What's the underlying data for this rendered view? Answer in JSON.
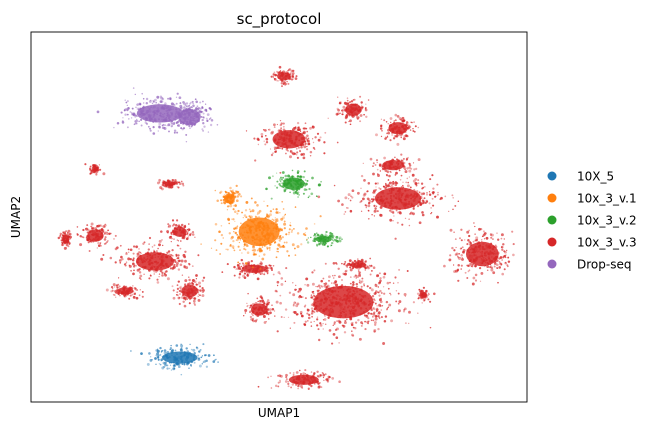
{
  "chart_data": {
    "type": "scatter",
    "title": "sc_protocol",
    "xlabel": "UMAP1",
    "ylabel": "UMAP2",
    "xlim": [
      0,
      100
    ],
    "ylim": [
      0,
      100
    ],
    "grid": false,
    "ticks": "none",
    "legend": {
      "placement": "right",
      "entries": [
        {
          "name": "10X_5",
          "color": "#1f77b4"
        },
        {
          "name": "10x_3_v.1",
          "color": "#ff7f0e"
        },
        {
          "name": "10x_3_v.2",
          "color": "#2ca02c"
        },
        {
          "name": "10x_3_v.3",
          "color": "#d62728"
        },
        {
          "name": "Drop-seq",
          "color": "#9467bd"
        }
      ]
    },
    "clusters": [
      {
        "series": "Drop-seq",
        "cx": 26,
        "cy": 78,
        "rx": 8.5,
        "ry": 4.5
      },
      {
        "series": "Drop-seq",
        "cx": 32,
        "cy": 77,
        "rx": 4,
        "ry": 4
      },
      {
        "series": "10x_3_v.1",
        "cx": 46,
        "cy": 46,
        "rx": 7.5,
        "ry": 7
      },
      {
        "series": "10x_3_v.1",
        "cx": 40,
        "cy": 55,
        "rx": 2,
        "ry": 2.5
      },
      {
        "series": "10x_3_v.2",
        "cx": 53,
        "cy": 59,
        "rx": 4,
        "ry": 3
      },
      {
        "series": "10x_3_v.2",
        "cx": 59,
        "cy": 44,
        "rx": 3,
        "ry": 1.6
      },
      {
        "series": "10X_5",
        "cx": 30,
        "cy": 12,
        "rx": 6.5,
        "ry": 3
      },
      {
        "series": "10x_3_v.3",
        "cx": 51,
        "cy": 88,
        "rx": 2.5,
        "ry": 2
      },
      {
        "series": "10x_3_v.3",
        "cx": 65,
        "cy": 79,
        "rx": 3,
        "ry": 3
      },
      {
        "series": "10x_3_v.3",
        "cx": 52,
        "cy": 71,
        "rx": 6,
        "ry": 4.5
      },
      {
        "series": "10x_3_v.3",
        "cx": 74,
        "cy": 74,
        "rx": 3.5,
        "ry": 3
      },
      {
        "series": "10x_3_v.3",
        "cx": 73,
        "cy": 64,
        "rx": 4,
        "ry": 2.5
      },
      {
        "series": "10x_3_v.3",
        "cx": 74,
        "cy": 55,
        "rx": 8.5,
        "ry": 5.5
      },
      {
        "series": "10x_3_v.3",
        "cx": 91,
        "cy": 40,
        "rx": 6,
        "ry": 6
      },
      {
        "series": "10x_3_v.3",
        "cx": 13,
        "cy": 45,
        "rx": 3,
        "ry": 3
      },
      {
        "series": "10x_3_v.3",
        "cx": 25,
        "cy": 38,
        "rx": 7,
        "ry": 4.5
      },
      {
        "series": "10x_3_v.3",
        "cx": 30,
        "cy": 46,
        "rx": 2.5,
        "ry": 2.5
      },
      {
        "series": "10x_3_v.3",
        "cx": 45,
        "cy": 36,
        "rx": 4.5,
        "ry": 2
      },
      {
        "series": "10x_3_v.3",
        "cx": 63,
        "cy": 27,
        "rx": 11,
        "ry": 8
      },
      {
        "series": "10x_3_v.3",
        "cx": 32,
        "cy": 30,
        "rx": 3,
        "ry": 3
      },
      {
        "series": "10x_3_v.3",
        "cx": 19,
        "cy": 30,
        "rx": 3,
        "ry": 1.8
      },
      {
        "series": "10x_3_v.3",
        "cx": 46,
        "cy": 25,
        "rx": 3,
        "ry": 3
      },
      {
        "series": "10x_3_v.3",
        "cx": 55,
        "cy": 6,
        "rx": 5.5,
        "ry": 2.5
      },
      {
        "series": "10x_3_v.3",
        "cx": 13,
        "cy": 63,
        "rx": 1.2,
        "ry": 1.2
      },
      {
        "series": "10x_3_v.3",
        "cx": 28,
        "cy": 59,
        "rx": 2,
        "ry": 1.2
      },
      {
        "series": "10x_3_v.3",
        "cx": 66,
        "cy": 37,
        "rx": 3,
        "ry": 1.3
      },
      {
        "series": "10x_3_v.3",
        "cx": 79,
        "cy": 29,
        "rx": 1.3,
        "ry": 1.5
      },
      {
        "series": "10x_3_v.3",
        "cx": 7,
        "cy": 44,
        "rx": 1.2,
        "ry": 2.2
      }
    ]
  }
}
